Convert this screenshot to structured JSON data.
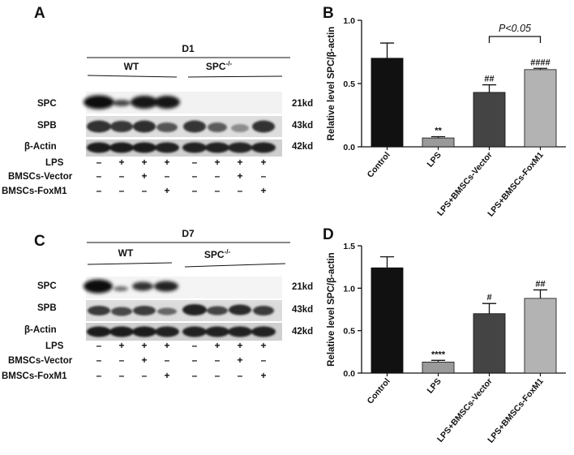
{
  "panels": {
    "A": "A",
    "B": "B",
    "C": "C",
    "D": "D"
  },
  "blot_A": {
    "day": "D1",
    "group_wt": "WT",
    "group_ko": "SPC",
    "group_ko_sup": "-/-",
    "rows": [
      "SPC",
      "SPB",
      "β-Actin"
    ],
    "sizes": [
      "21kd",
      "43kd",
      "42kd"
    ],
    "treatments": [
      {
        "label": "LPS",
        "signs": [
          "–",
          "+",
          "+",
          "+",
          "–",
          "+",
          "+",
          "+"
        ]
      },
      {
        "label": "BMSCs-Vector",
        "signs": [
          "–",
          "–",
          "+",
          "–",
          "–",
          "–",
          "+",
          "–"
        ]
      },
      {
        "label": "BMSCs-FoxM1",
        "signs": [
          "–",
          "–",
          "–",
          "+",
          "–",
          "–",
          "–",
          "+"
        ]
      }
    ]
  },
  "blot_C": {
    "day": "D7",
    "group_wt": "WT",
    "group_ko": "SPC",
    "group_ko_sup": "-/-",
    "rows": [
      "SPC",
      "SPB",
      "β-Actin"
    ],
    "sizes": [
      "21kd",
      "43kd",
      "42kd"
    ],
    "treatments": [
      {
        "label": "LPS",
        "signs": [
          "–",
          "+",
          "+",
          "+",
          "–",
          "+",
          "+",
          "+"
        ]
      },
      {
        "label": "BMSCs-Vector",
        "signs": [
          "–",
          "–",
          "+",
          "–",
          "–",
          "–",
          "+",
          "–"
        ]
      },
      {
        "label": "BMSCs-FoxM1",
        "signs": [
          "–",
          "–",
          "–",
          "+",
          "–",
          "–",
          "–",
          "+"
        ]
      }
    ]
  },
  "chart_data": [
    {
      "panel": "B",
      "type": "bar",
      "categories": [
        "Control",
        "LPS",
        "LPS+BMSCs-Vector",
        "LPS+BMSCs-FoxM1"
      ],
      "values": [
        0.7,
        0.07,
        0.43,
        0.61
      ],
      "errors": [
        0.12,
        0.01,
        0.06,
        0.01
      ],
      "significance": [
        "",
        "**",
        "##",
        "####"
      ],
      "bracket_label": "P<0.05",
      "bracket_between": [
        2,
        3
      ],
      "ylabel": "Relative level SPC/β-actin",
      "ylim": [
        0,
        1.0
      ],
      "yticks": [
        "0.0",
        "0.5",
        "1.0"
      ],
      "colors": [
        "#111111",
        "#9a9a9a",
        "#444444",
        "#b3b3b3"
      ],
      "grid": false
    },
    {
      "panel": "D",
      "type": "bar",
      "categories": [
        "Control",
        "LPS",
        "LPS+BMSCs-Vector",
        "LPS+BMSCs-FoxM1"
      ],
      "values": [
        1.24,
        0.13,
        0.7,
        0.88
      ],
      "errors": [
        0.13,
        0.02,
        0.12,
        0.1
      ],
      "significance": [
        "",
        "****",
        "#",
        "##"
      ],
      "ylabel": "Relative level SPC/β-actin",
      "ylim": [
        0,
        1.5
      ],
      "yticks": [
        "0.0",
        "0.5",
        "1.0",
        "1.5"
      ],
      "colors": [
        "#111111",
        "#9a9a9a",
        "#444444",
        "#b3b3b3"
      ],
      "grid": false
    }
  ]
}
